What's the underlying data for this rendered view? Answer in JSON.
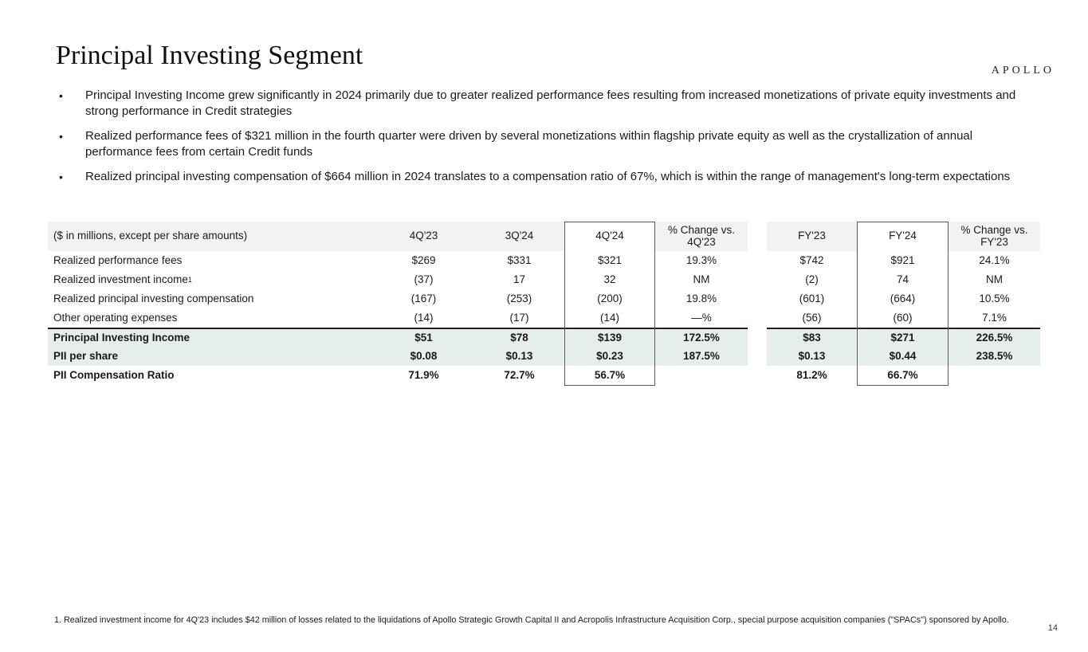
{
  "brand": {
    "logo_text": "APOLLO"
  },
  "slide": {
    "title": "Principal Investing Segment",
    "page_number": "14",
    "bullet_marker": "•",
    "bullets": [
      "Principal Investing Income grew significantly in 2024 primarily due to greater realized performance fees resulting from increased monetizations of private equity investments and strong performance in Credit strategies",
      "Realized performance fees of $321 million in the fourth quarter were driven by several monetizations within flagship private equity as well as the crystallization of annual performance fees from certain Credit funds",
      "Realized principal investing compensation of $664 million in 2024 translates to a compensation ratio of 67%, which is within the range of management's long-term expectations"
    ],
    "footnote": "1. Realized investment income for 4Q'23 includes $42 million of losses related to the liquidations of Apollo Strategic Growth Capital II and Acropolis Infrastructure Acquisition Corp., special purpose acquisition companies (\"SPACs\") sponsored by Apollo."
  },
  "table": {
    "label_header": "($ in millions, except per share amounts)",
    "columns": [
      "4Q'23",
      "3Q'24",
      "4Q'24",
      "% Change vs. 4Q'23",
      "FY'23",
      "FY'24",
      "% Change vs. FY'23"
    ],
    "rows": [
      {
        "label": "Realized performance fees",
        "values": [
          "$269",
          "$331",
          "$321",
          "19.3%",
          "$742",
          "$921",
          "24.1%"
        ]
      },
      {
        "label": "Realized investment income",
        "sup": "1",
        "values": [
          "(37)",
          "17",
          "32",
          "NM",
          "(2)",
          "74",
          "NM"
        ]
      },
      {
        "label": "Realized principal investing compensation",
        "values": [
          "(167)",
          "(253)",
          "(200)",
          "19.8%",
          "(601)",
          "(664)",
          "10.5%"
        ]
      },
      {
        "label": "Other operating expenses",
        "values": [
          "(14)",
          "(17)",
          "(14)",
          "—%",
          "(56)",
          "(60)",
          "7.1%"
        ]
      },
      {
        "label": "Principal Investing Income",
        "values": [
          "$51",
          "$78",
          "$139",
          "172.5%",
          "$83",
          "$271",
          "226.5%"
        ]
      },
      {
        "label": "PII per share",
        "values": [
          "$0.08",
          "$0.13",
          "$0.23",
          "187.5%",
          "$0.13",
          "$0.44",
          "238.5%"
        ]
      },
      {
        "label": "PII Compensation Ratio",
        "values": [
          "71.9%",
          "72.7%",
          "56.7%",
          "",
          "81.2%",
          "66.7%",
          ""
        ]
      }
    ]
  },
  "colors": {
    "header_bg": "#f2f2f0",
    "highlight_bg": "#e6eee9",
    "box_border": "#595959",
    "rule": "#1f1f1f"
  }
}
